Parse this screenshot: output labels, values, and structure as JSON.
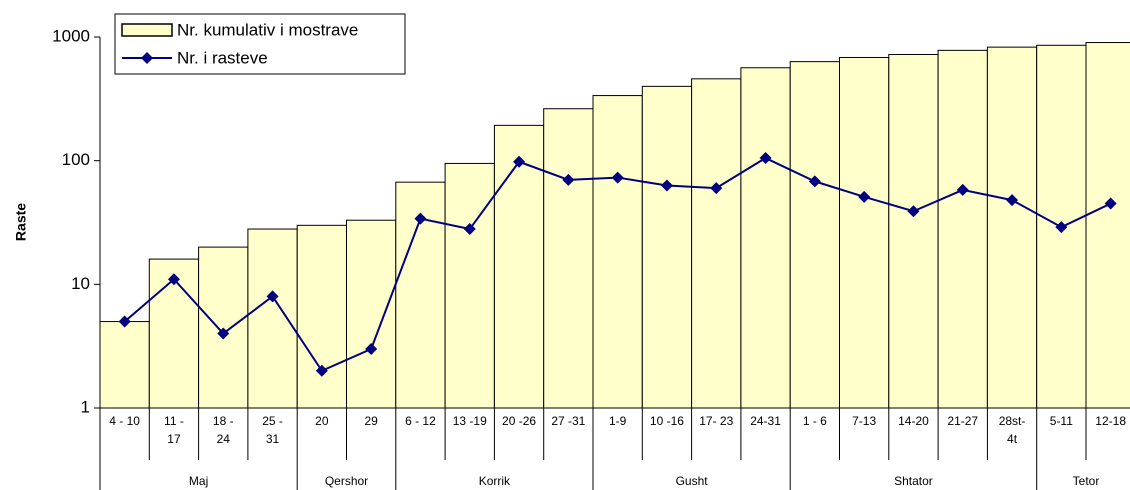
{
  "chart_data": {
    "type": "bar-line",
    "y_label": "Raste",
    "categories": [
      "4 - 10",
      "11 - 17",
      "18 - 24",
      "25 - 31",
      "20",
      "29",
      "6 - 12",
      "13 -19",
      "20 -26",
      "27 -31",
      "1-9",
      "10 -16",
      "17- 23",
      "24-31",
      "1 - 6",
      "7-13",
      "14-20",
      "21-27",
      "28st-4t",
      "5-11",
      "12-18"
    ],
    "groups": [
      "Maj",
      "Maj",
      "Maj",
      "Maj",
      "Qershor",
      "Qershor",
      "Korrik",
      "Korrik",
      "Korrik",
      "Korrik",
      "Gusht",
      "Gusht",
      "Gusht",
      "Gusht",
      "Shtator",
      "Shtator",
      "Shtator",
      "Shtator",
      "Shtator",
      "Tetor",
      "Tetor"
    ],
    "series": [
      {
        "name": "Nr.  kumulativ i mostrave",
        "type": "bar",
        "color": "#ffffcc",
        "values": [
          5,
          16,
          20,
          28,
          30,
          33,
          67,
          95,
          193,
          263,
          336,
          399,
          459,
          564,
          632,
          683,
          722,
          780,
          828,
          857,
          902
        ]
      },
      {
        "name": "Nr. i rasteve",
        "type": "line",
        "color": "#000080",
        "values": [
          5,
          11,
          4,
          8,
          2,
          3,
          34,
          28,
          98,
          70,
          73,
          63,
          60,
          105,
          68,
          51,
          39,
          58,
          48,
          29,
          45
        ]
      }
    ],
    "log_scale": true,
    "ylim": [
      1,
      1000
    ],
    "yticks": [
      1,
      10,
      100,
      1000
    ],
    "legend": "top-left"
  }
}
